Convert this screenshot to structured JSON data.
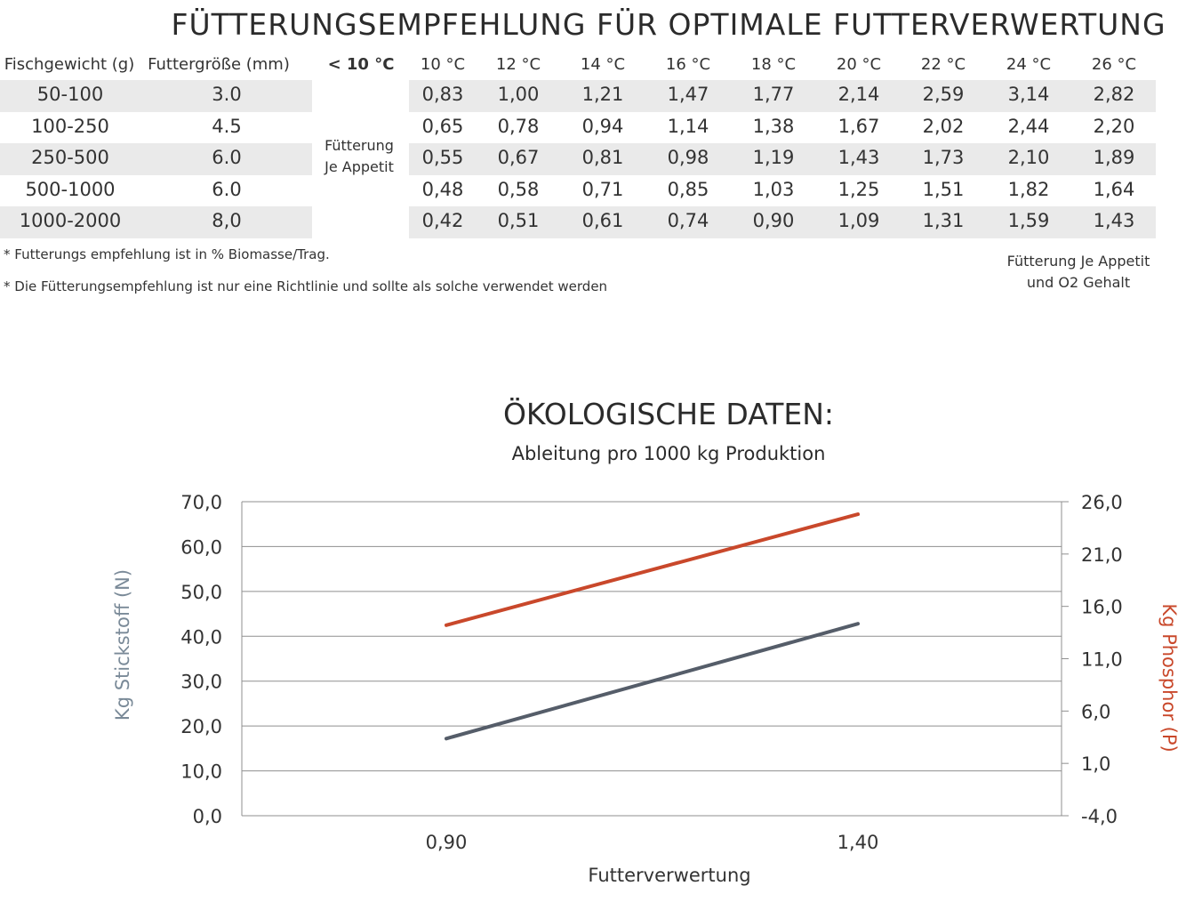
{
  "table": {
    "title": "FÜTTERUNGSEMPFEHLUNG FÜR OPTIMALE FUTTERVERWERTUNG",
    "headers": {
      "weight": "Fischgewicht (g)",
      "size": "Futtergröße (mm)",
      "low_temp": "< 10 °C",
      "temps": [
        "10 °C",
        "12 °C",
        "14 °C",
        "16 °C",
        "18 °C",
        "20 °C",
        "22 °C",
        "24 °C",
        "26 °C"
      ]
    },
    "low_temp_note": [
      "Fütterung",
      "Je Appetit"
    ],
    "rows": [
      {
        "weight": "50-100",
        "size": "3.0",
        "values": [
          "0,83",
          "1,00",
          "1,21",
          "1,47",
          "1,77",
          "2,14",
          "2,59",
          "3,14",
          "2,82"
        ]
      },
      {
        "weight": "100-250",
        "size": "4.5",
        "values": [
          "0,65",
          "0,78",
          "0,94",
          "1,14",
          "1,38",
          "1,67",
          "2,02",
          "2,44",
          "2,20"
        ]
      },
      {
        "weight": "250-500",
        "size": "6.0",
        "values": [
          "0,55",
          "0,67",
          "0,81",
          "0,98",
          "1,19",
          "1,43",
          "1,73",
          "2,10",
          "1,89"
        ]
      },
      {
        "weight": "500-1000",
        "size": "6.0",
        "values": [
          "0,48",
          "0,58",
          "0,71",
          "0,85",
          "1,03",
          "1,25",
          "1,51",
          "1,82",
          "1,64"
        ]
      },
      {
        "weight": "1000-2000",
        "size": "8,0",
        "values": [
          "0,42",
          "0,51",
          "0,61",
          "0,74",
          "0,90",
          "1,09",
          "1,31",
          "1,59",
          "1,43"
        ]
      }
    ],
    "notes": [
      "* Futterungs empfehlung ist in % Biomasse/Trag.",
      "* Die Fütterungsempfehlung ist nur eine Richtlinie und sollte als solche verwendet werden"
    ],
    "high_temp_note": [
      "Fütterung Je Appetit",
      "und O2 Gehalt"
    ]
  },
  "chart_data": {
    "type": "line",
    "title": "ÖKOLOGISCHE DATEN:",
    "subtitle": "Ableitung pro 1000 kg Produktion",
    "xlabel": "Futterverwertung",
    "x": [
      "0,90",
      "1,40"
    ],
    "y_left": {
      "label": "Kg Stickstoff (N)",
      "lim": [
        0,
        70
      ],
      "ticks": [
        "0,0",
        "10,0",
        "20,0",
        "30,0",
        "40,0",
        "50,0",
        "60,0",
        "70,0"
      ]
    },
    "y_right": {
      "label": "Kg Phosphor (P)",
      "lim": [
        -4,
        26
      ],
      "ticks": [
        "-4,0",
        "1,0",
        "6,0",
        "11,0",
        "16,0",
        "21,0",
        "26,0"
      ]
    },
    "grid": true,
    "series": [
      {
        "axis": "left",
        "values": [
          17.2,
          42.8
        ],
        "color": "#555d69"
      },
      {
        "axis": "right",
        "values": [
          14.2,
          24.8
        ],
        "color": "#c9482b"
      }
    ]
  },
  "colors": {
    "left_axis": "#7a8a98",
    "right_axis": "#c9482b",
    "band": "#eaeaea"
  }
}
